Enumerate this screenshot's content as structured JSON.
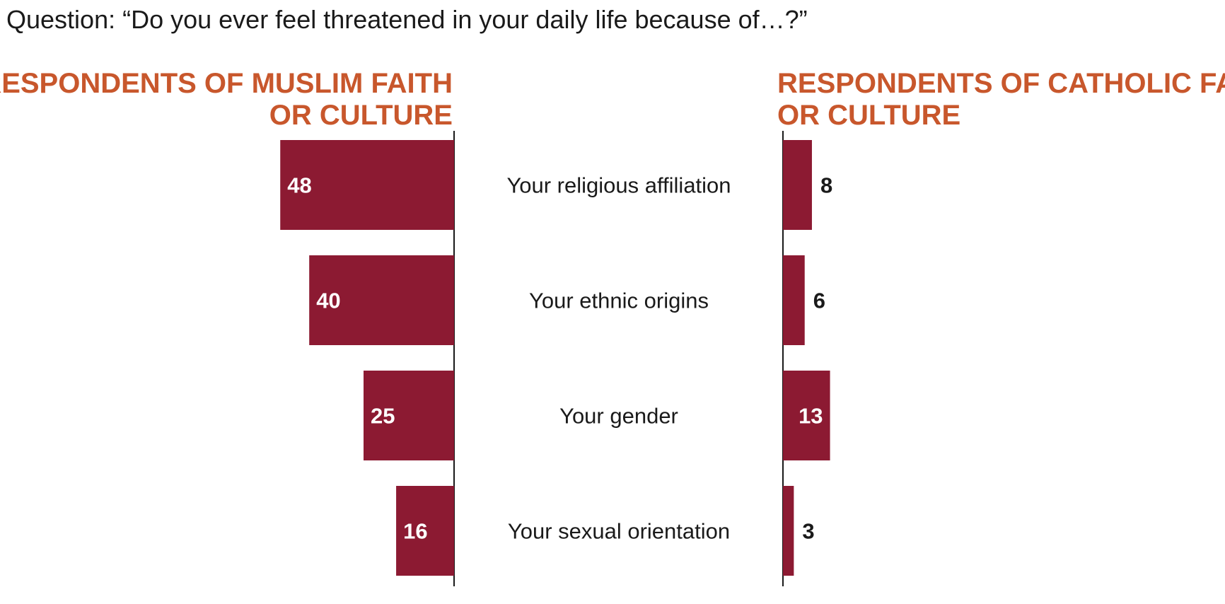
{
  "question": "Question: “Do you ever feel threatened in your daily life because of…?”",
  "colors": {
    "bar": "#8c1a32",
    "title": "#c8572c",
    "text": "#1a1a1a",
    "label_inside": "#ffffff",
    "axis": "#1a1a1a"
  },
  "chart_data": [
    {
      "type": "bar",
      "orientation": "horizontal",
      "direction": "leftward",
      "title_lines": [
        "RESPONDENTS OF MUSLIM FAITH",
        "OR CULTURE"
      ],
      "categories": [
        "Your religious affiliation",
        "Your ethnic origins",
        "Your gender",
        "Your sexual orientation"
      ],
      "values": [
        48,
        40,
        25,
        16
      ],
      "xlim": [
        0,
        50
      ]
    },
    {
      "type": "bar",
      "orientation": "horizontal",
      "direction": "rightward",
      "title_lines": [
        "RESPONDENTS OF CATHOLIC FAITH",
        "OR CULTURE"
      ],
      "categories": [
        "Your religious affiliation",
        "Your ethnic origins",
        "Your gender",
        "Your sexual orientation"
      ],
      "values": [
        8,
        6,
        13,
        3
      ],
      "xlim": [
        0,
        50
      ]
    }
  ]
}
